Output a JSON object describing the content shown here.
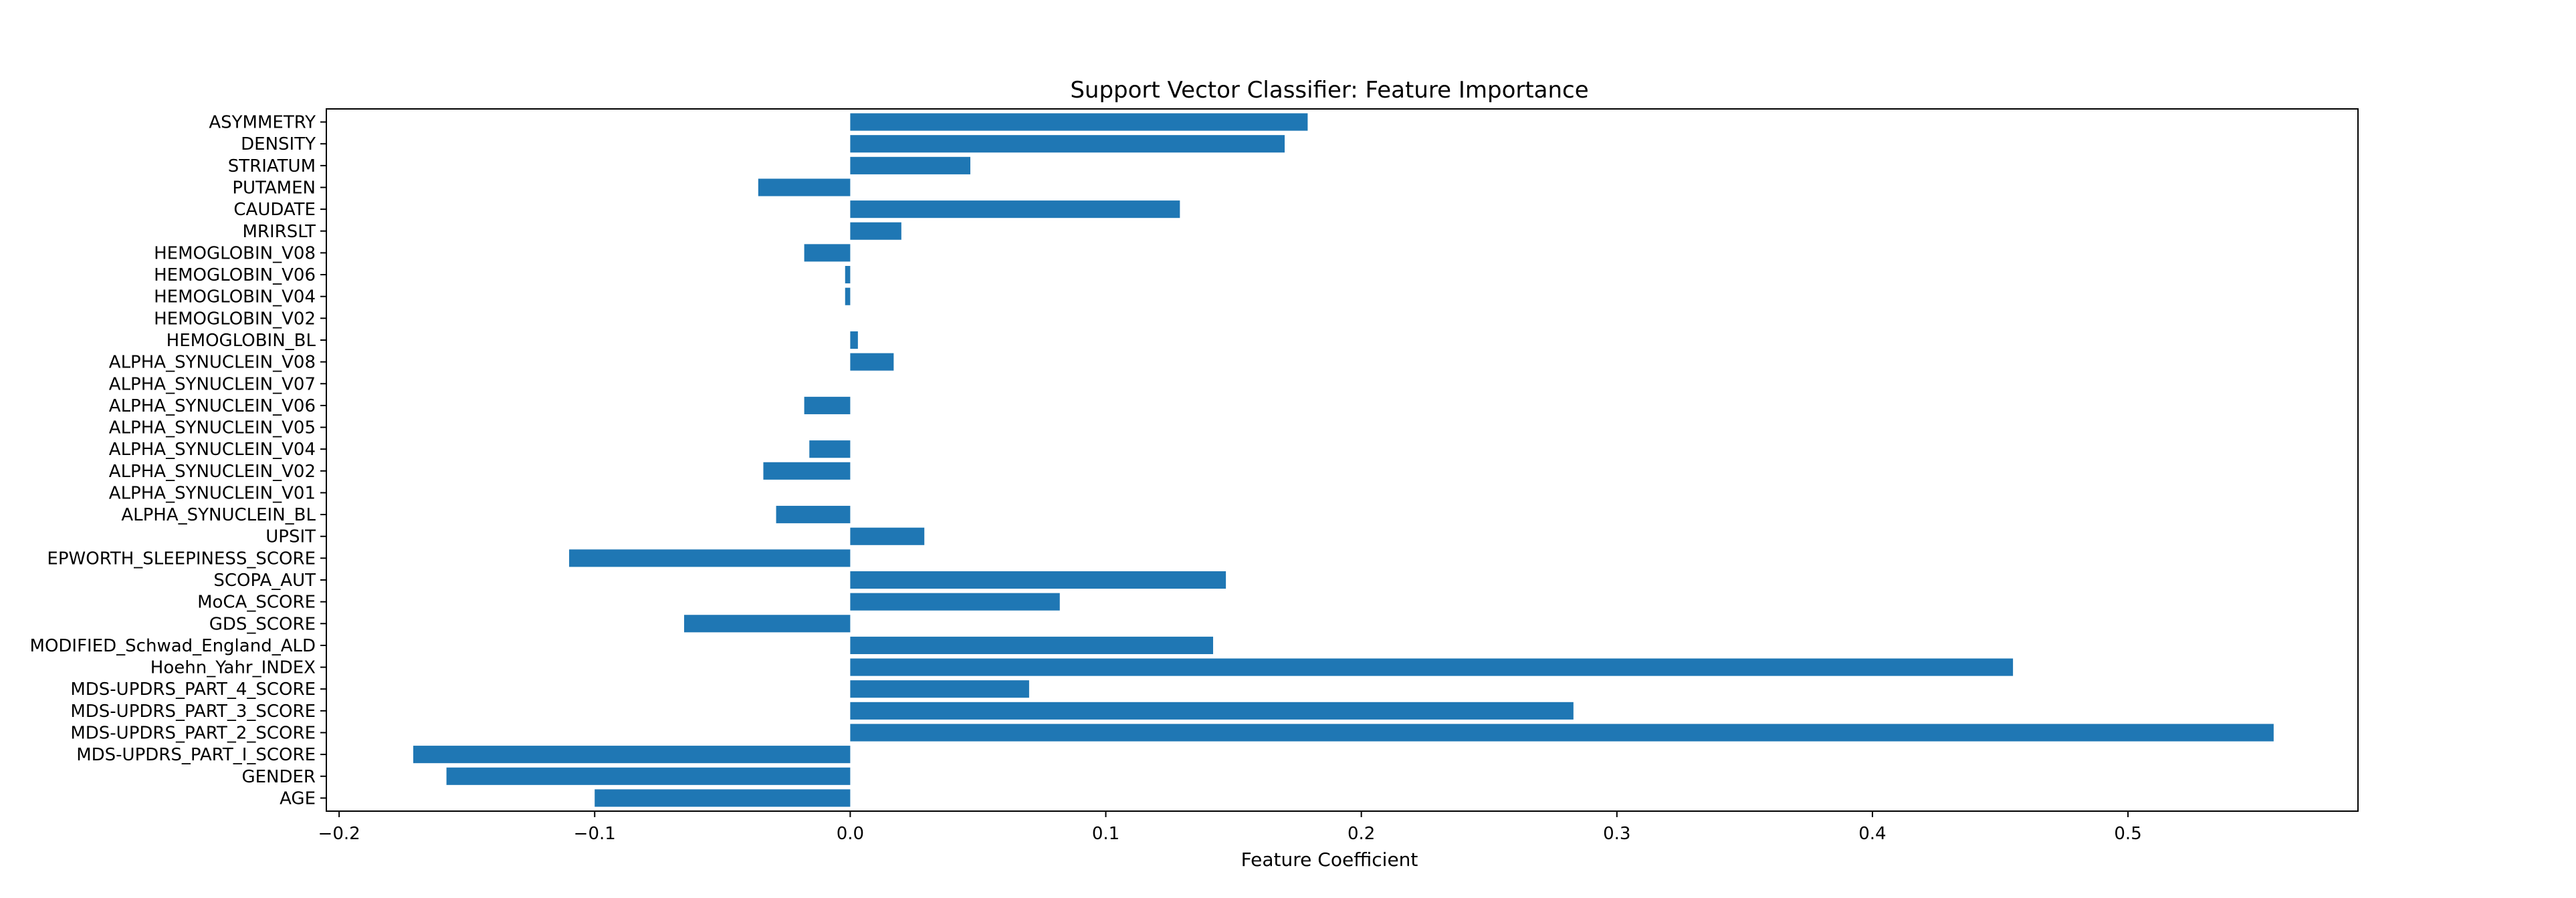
{
  "chart_data": {
    "type": "bar",
    "orientation": "horizontal",
    "title": "Support Vector Classifier: Feature Importance",
    "xlabel": "Feature Coefficient",
    "ylabel": "",
    "xlim": [
      -0.205,
      0.59
    ],
    "xticks": [
      -0.2,
      -0.1,
      0.0,
      0.1,
      0.2,
      0.3,
      0.4,
      0.5
    ],
    "xtick_labels": [
      "−0.2",
      "−0.1",
      "0.0",
      "0.1",
      "0.2",
      "0.3",
      "0.4",
      "0.5"
    ],
    "grid": false,
    "legend": "none",
    "bar_color": "#1f77b4",
    "categories": [
      "AGE",
      "GENDER",
      "MDS-UPDRS_PART_I_SCORE",
      "MDS-UPDRS_PART_2_SCORE",
      "MDS-UPDRS_PART_3_SCORE",
      "MDS-UPDRS_PART_4_SCORE",
      "Hoehn_Yahr_INDEX",
      "MODIFIED_Schwad_England_ALD",
      "GDS_SCORE",
      "MoCA_SCORE",
      "SCOPA_AUT",
      "EPWORTH_SLEEPINESS_SCORE",
      "UPSIT",
      "ALPHA_SYNUCLEIN_BL",
      "ALPHA_SYNUCLEIN_V01",
      "ALPHA_SYNUCLEIN_V02",
      "ALPHA_SYNUCLEIN_V04",
      "ALPHA_SYNUCLEIN_V05",
      "ALPHA_SYNUCLEIN_V06",
      "ALPHA_SYNUCLEIN_V07",
      "ALPHA_SYNUCLEIN_V08",
      "HEMOGLOBIN_BL",
      "HEMOGLOBIN_V02",
      "HEMOGLOBIN_V04",
      "HEMOGLOBIN_V06",
      "HEMOGLOBIN_V08",
      "MRIRSLT",
      "CAUDATE",
      "PUTAMEN",
      "STRIATUM",
      "DENSITY",
      "ASYMMETRY"
    ],
    "values": [
      -0.1,
      -0.158,
      -0.171,
      0.557,
      0.283,
      0.07,
      0.455,
      0.142,
      -0.065,
      0.082,
      0.147,
      -0.11,
      0.029,
      -0.029,
      0.0,
      -0.034,
      -0.016,
      0.0,
      -0.018,
      0.0,
      0.017,
      0.003,
      0.0,
      -0.002,
      -0.002,
      -0.018,
      0.02,
      0.129,
      -0.036,
      0.047,
      0.17,
      0.179
    ]
  }
}
